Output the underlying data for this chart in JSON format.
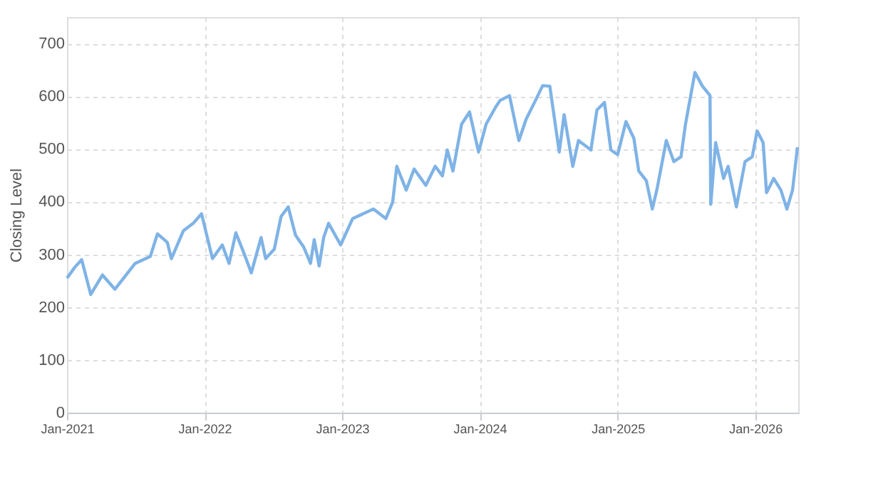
{
  "chart_data": {
    "type": "line",
    "ylabel": "Closing Level",
    "color": "#7fb3e6",
    "grid": true,
    "marker": "none",
    "line_style": "solid",
    "xlim": [
      "2021-01-01",
      "2026-04-25"
    ],
    "ylim": [
      0,
      750
    ],
    "yticks": [
      0,
      100,
      200,
      300,
      400,
      500,
      600,
      700
    ],
    "xticks": [
      {
        "value": "2021-01-01",
        "label": "Jan-2021"
      },
      {
        "value": "2022-01-01",
        "label": "Jan-2022"
      },
      {
        "value": "2023-01-01",
        "label": "Jan-2023"
      },
      {
        "value": "2024-01-01",
        "label": "Jan-2024"
      },
      {
        "value": "2025-01-01",
        "label": "Jan-2025"
      },
      {
        "value": "2026-01-01",
        "label": "Jan-2026"
      }
    ],
    "x": [
      "2021-01-01",
      "2021-01-21",
      "2021-02-09",
      "2021-03-05",
      "2021-04-05",
      "2021-05-08",
      "2021-07-01",
      "2021-08-10",
      "2021-08-29",
      "2021-09-24",
      "2021-10-05",
      "2021-11-06",
      "2021-12-02",
      "2021-12-24",
      "2022-01-07",
      "2022-01-22",
      "2022-02-17",
      "2022-03-07",
      "2022-03-25",
      "2022-04-14",
      "2022-05-05",
      "2022-05-31",
      "2022-06-12",
      "2022-07-05",
      "2022-07-23",
      "2022-08-11",
      "2022-08-30",
      "2022-09-21",
      "2022-10-09",
      "2022-10-19",
      "2022-11-01",
      "2022-11-13",
      "2022-11-26",
      "2022-12-28",
      "2023-01-29",
      "2023-03-25",
      "2023-04-27",
      "2023-05-15",
      "2023-05-26",
      "2023-06-20",
      "2023-07-11",
      "2023-08-11",
      "2023-09-05",
      "2023-09-24",
      "2023-10-07",
      "2023-10-22",
      "2023-11-14",
      "2023-12-05",
      "2023-12-29",
      "2024-01-18",
      "2024-02-12",
      "2024-02-24",
      "2024-03-20",
      "2024-04-14",
      "2024-05-03",
      "2024-05-28",
      "2024-06-16",
      "2024-07-05",
      "2024-07-30",
      "2024-08-12",
      "2024-09-04",
      "2024-09-19",
      "2024-10-22",
      "2024-11-07",
      "2024-11-27",
      "2024-12-14",
      "2025-01-01",
      "2025-01-23",
      "2025-02-13",
      "2025-02-26",
      "2025-03-18",
      "2025-04-03",
      "2025-04-16",
      "2025-05-10",
      "2025-05-30",
      "2025-06-18",
      "2025-06-30",
      "2025-07-25",
      "2025-08-14",
      "2025-09-03",
      "2025-09-05",
      "2025-09-18",
      "2025-10-09",
      "2025-10-21",
      "2025-11-12",
      "2025-12-05",
      "2025-12-24",
      "2026-01-06",
      "2026-01-22",
      "2026-01-31",
      "2026-02-19",
      "2026-03-10",
      "2026-03-26",
      "2026-04-10",
      "2026-04-23"
    ],
    "values": [
      255,
      275,
      290,
      224,
      261,
      234,
      283,
      296,
      339,
      323,
      292,
      345,
      359,
      377,
      336,
      292,
      318,
      283,
      341,
      305,
      265,
      332,
      292,
      310,
      372,
      390,
      337,
      314,
      283,
      328,
      278,
      332,
      359,
      318,
      368,
      386,
      368,
      399,
      467,
      422,
      462,
      431,
      467,
      449,
      498,
      458,
      547,
      570,
      494,
      547,
      579,
      592,
      601,
      516,
      556,
      592,
      620,
      619,
      494,
      565,
      467,
      516,
      498,
      574,
      588,
      498,
      489,
      552,
      520,
      458,
      440,
      386,
      426,
      516,
      476,
      485,
      547,
      645,
      619,
      601,
      395,
      512,
      444,
      467,
      390,
      476,
      485,
      534,
      512,
      417,
      444,
      422,
      386,
      422,
      503
    ]
  }
}
